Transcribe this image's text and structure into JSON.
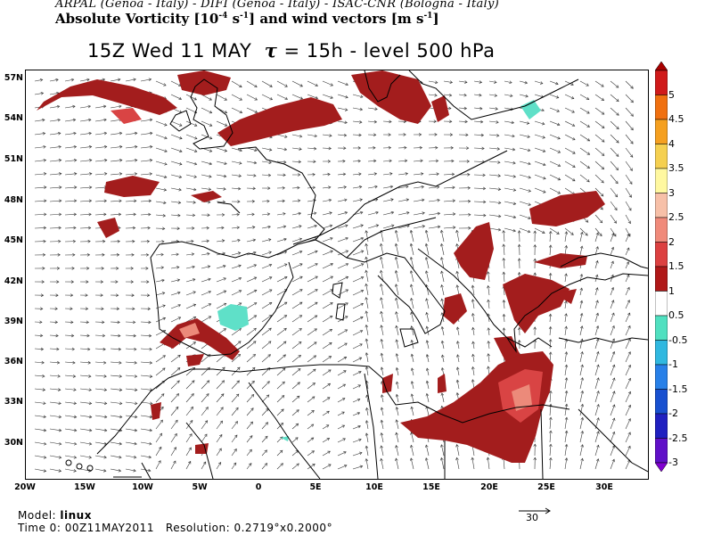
{
  "header": {
    "institutions": "ARPAL (Genoa - Italy)  -  DIFI (Genoa - Italy)  -  ISAC-CNR (Bologna - Italy)",
    "field_pre": "Absolute Vorticity [10",
    "field_exp1": "-4",
    "field_mid1": " s",
    "field_exp2": "-1",
    "field_mid2": "] and wind vectors [m s",
    "field_exp3": "-1",
    "field_post": "]",
    "time_label": "15Z Wed 11 MAY",
    "tau_symbol": "τ",
    "tau_value": " = 15h  -  level 500 hPa"
  },
  "map": {
    "lat_labels": [
      "57N",
      "54N",
      "51N",
      "48N",
      "45N",
      "42N",
      "39N",
      "36N",
      "33N",
      "30N"
    ],
    "lon_labels": [
      "20W",
      "15W",
      "10W",
      "5W",
      "0",
      "5E",
      "10E",
      "15E",
      "20E",
      "25E",
      "30E"
    ],
    "colors": {
      "pos_dark": "#a31d1d",
      "pos_mid": "#d94444",
      "pos_light": "#ec8a7a",
      "neg": "#5fe0c8",
      "coast": "#000000",
      "vector": "#000000"
    }
  },
  "colorbar": {
    "labels": [
      "5",
      "4.5",
      "4",
      "3.5",
      "3",
      "2.5",
      "2",
      "1.5",
      "1",
      "0.5",
      "-0.5",
      "-1",
      "-1.5",
      "-2",
      "-2.5",
      "-3"
    ],
    "colors": [
      "#a80000",
      "#d01a1a",
      "#f07010",
      "#f5a020",
      "#f5d050",
      "#fff8a0",
      "#f7c0a8",
      "#f08a7a",
      "#dc4040",
      "#b01818",
      "#ffffff",
      "#50e0c0",
      "#30b8e0",
      "#2880e8",
      "#1850d0",
      "#2020c0",
      "#6010c8",
      "#8000d0"
    ]
  },
  "footer": {
    "model_label": "Model:",
    "model_value": "linux",
    "time0_label": "Time 0:",
    "time0_value": "00Z11MAY2011",
    "resolution_label": "Resolution:",
    "resolution_value": "0.2719°x0.2000°"
  },
  "reference_vector": {
    "value": "30"
  }
}
